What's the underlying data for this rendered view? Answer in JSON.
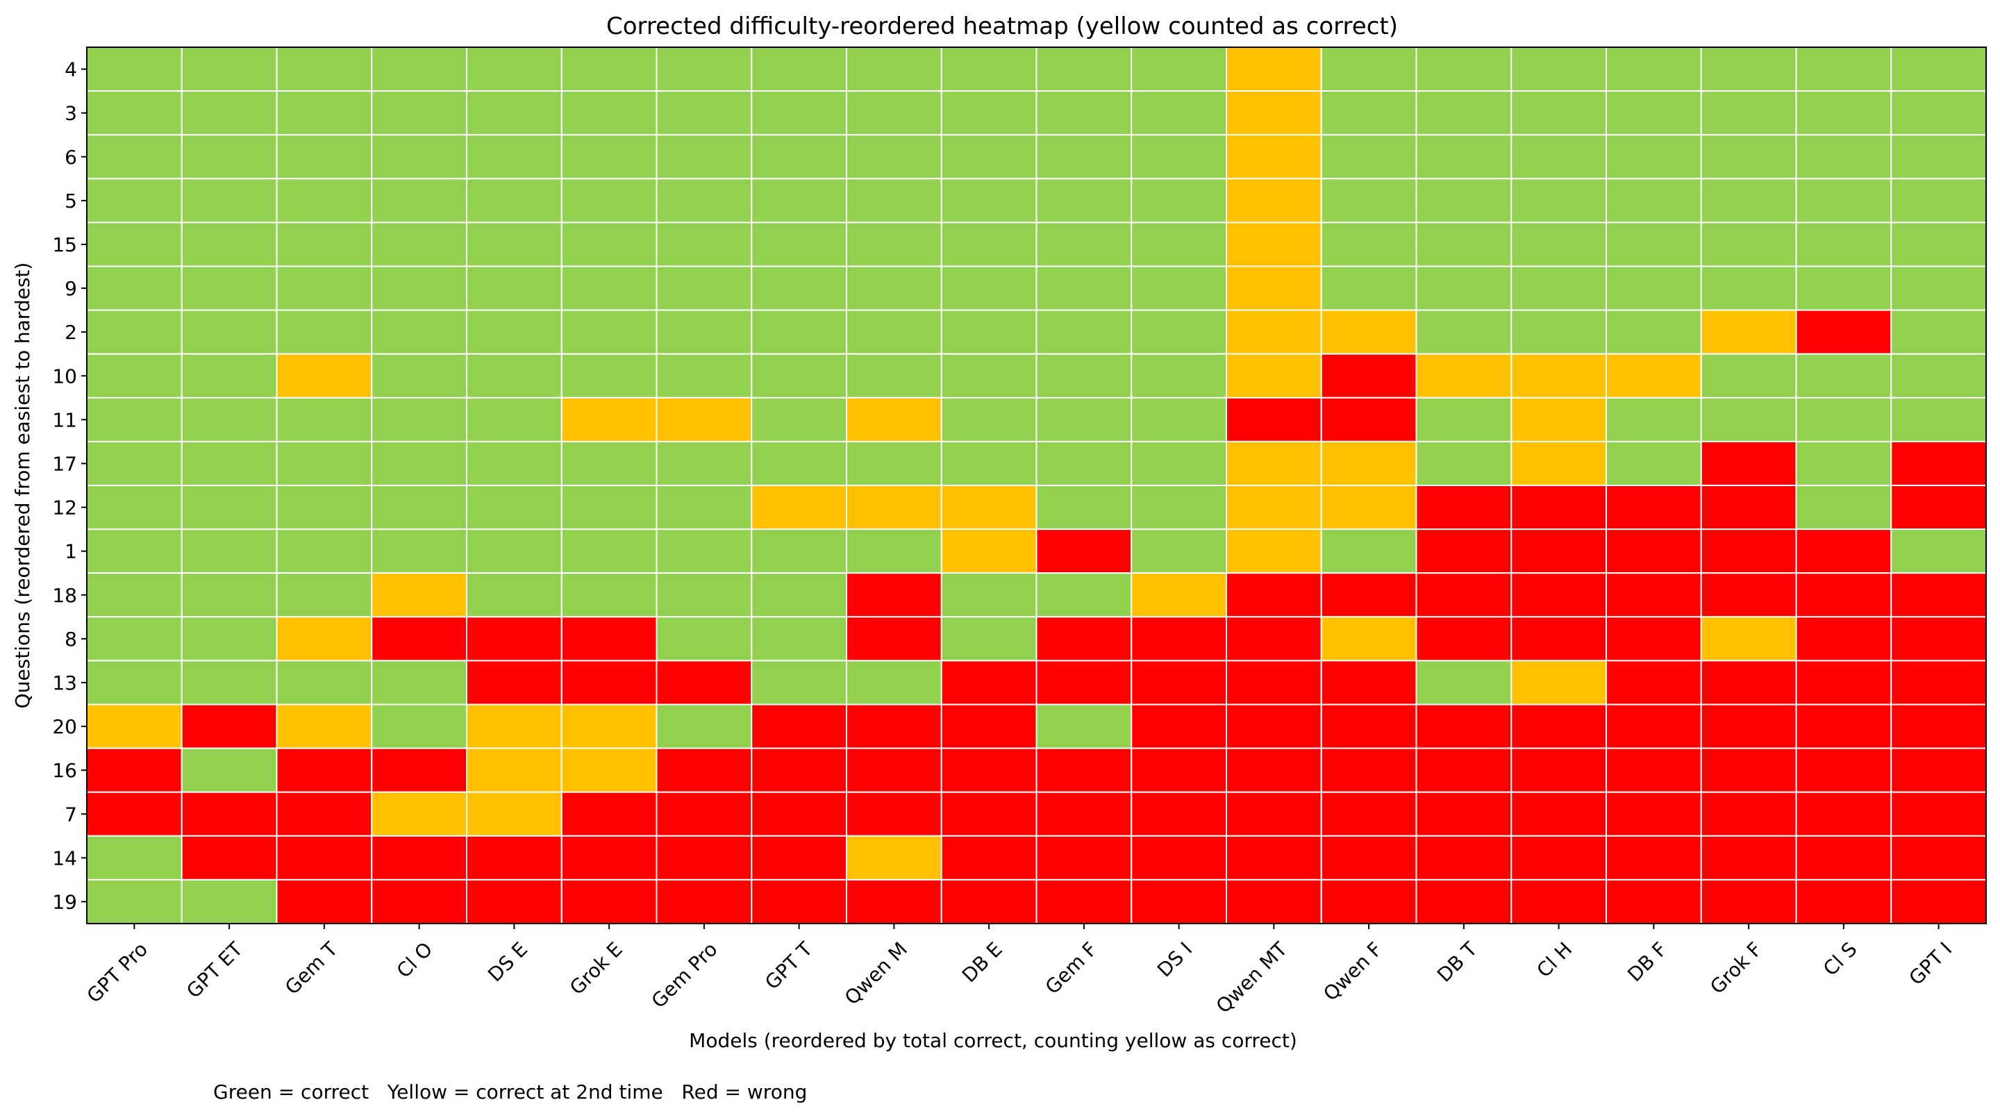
{
  "chart_data": {
    "type": "heatmap",
    "title": "Corrected difficulty-reordered heatmap (yellow counted as correct)",
    "xlabel": "Models (reordered by total correct, counting yellow as correct)",
    "ylabel": "Questions (reordered from easiest to hardest)",
    "models": [
      "GPT Pro",
      "GPT ET",
      "Gem T",
      "Cl O",
      "DS E",
      "Grok E",
      "Gem Pro",
      "GPT T",
      "Qwen M",
      "DB E",
      "Gem F",
      "DS I",
      "Qwen MT",
      "Qwen F",
      "DB T",
      "Cl H",
      "DB F",
      "Grok F",
      "Cl S",
      "GPT I"
    ],
    "questions": [
      "4",
      "3",
      "6",
      "5",
      "15",
      "9",
      "2",
      "10",
      "11",
      "17",
      "12",
      "1",
      "18",
      "8",
      "13",
      "20",
      "16",
      "7",
      "14",
      "19"
    ],
    "value_codes": {
      "G": "correct",
      "Y": "correct at 2nd time",
      "R": "wrong"
    },
    "colors": {
      "G": "#92d050",
      "Y": "#ffc000",
      "R": "#ff0000",
      "grid": "#ffffff"
    },
    "matrix": [
      "GGGGGGGGGGGGYGGGGGGG",
      "GGGGGGGGGGGGYGGGGGGG",
      "GGGGGGGGGGGGYGGGGGGG",
      "GGGGGGGGGGGGYGGGGGGG",
      "GGGGGGGGGGGGYGGGGGGG",
      "GGGGGGGGGGGGYGGGGGGG",
      "GGGGGGGGGGGGYYGGGYRG",
      "GGYGGGGGGGGGYRYYYGGG",
      "GGGGGYYGYGGGRRGYGGGG",
      "GGGGGGGGGGGGYYGYGRGR",
      "GGGGGGGYYYGGYYRRRRGR",
      "GGGGGGGGGYRGYGRRRRRG",
      "GGGYGGGGRGGYRRRRRRRR",
      "GGYRRRGGRGRRRYRRRYRR",
      "GGGGRRRGGRRRRRGYRRRR",
      "YRYGYYGRRRGRRRRRRRRR",
      "RGRRYYRRRRRRRRRRRRRR",
      "RRRYYRRRRRRRRRRRRRRR",
      "GRRRRRRRYRRRRRRRRRRR",
      "GGRRRRRRRRRRRRRRRRRR"
    ],
    "legend": "Green = correct   Yellow = correct at 2nd time   Red = wrong"
  }
}
